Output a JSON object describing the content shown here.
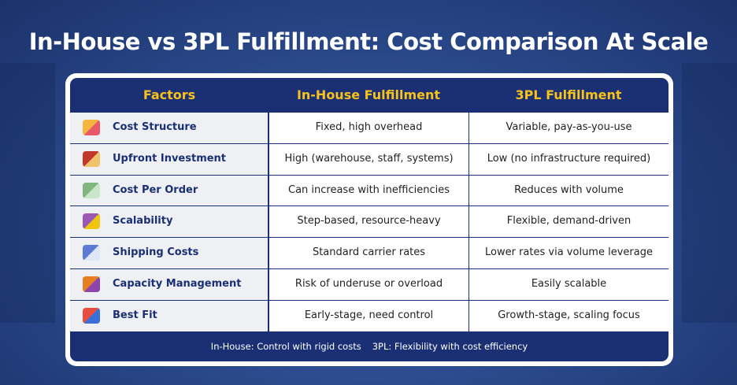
{
  "header": {
    "title": "In-House vs 3PL Fulfillment: Cost Comparison At Scale"
  },
  "table": {
    "columns": [
      "Factors",
      "In-House Fulfillment",
      "3PL Fulfillment"
    ],
    "rows": [
      [
        "Cost Structure",
        "Fixed, high overhead",
        "Variable, pay-as-you-use"
      ],
      [
        "Upfront Investment",
        "High (warehouse, staff, systems)",
        "Low (no infrastructure required)"
      ],
      [
        "Cost Per Order",
        "Can increase with inefficiencies",
        "Reduces with volume"
      ],
      [
        "Scalability",
        "Step-based, resource-heavy",
        "Flexible, demand-driven"
      ],
      [
        "Shipping Costs",
        "Standard carrier rates",
        "Lower rates via volume leverage"
      ],
      [
        "Capacity Management",
        "Risk of underuse or overload",
        "Easily scalable"
      ],
      [
        "Best Fit",
        "Early-stage, need control",
        "Growth-stage, scaling focus"
      ]
    ]
  },
  "footer": [
    "In-House: Control with rigid costs",
    "3PL: Flexibility with cost efficiency"
  ]
}
